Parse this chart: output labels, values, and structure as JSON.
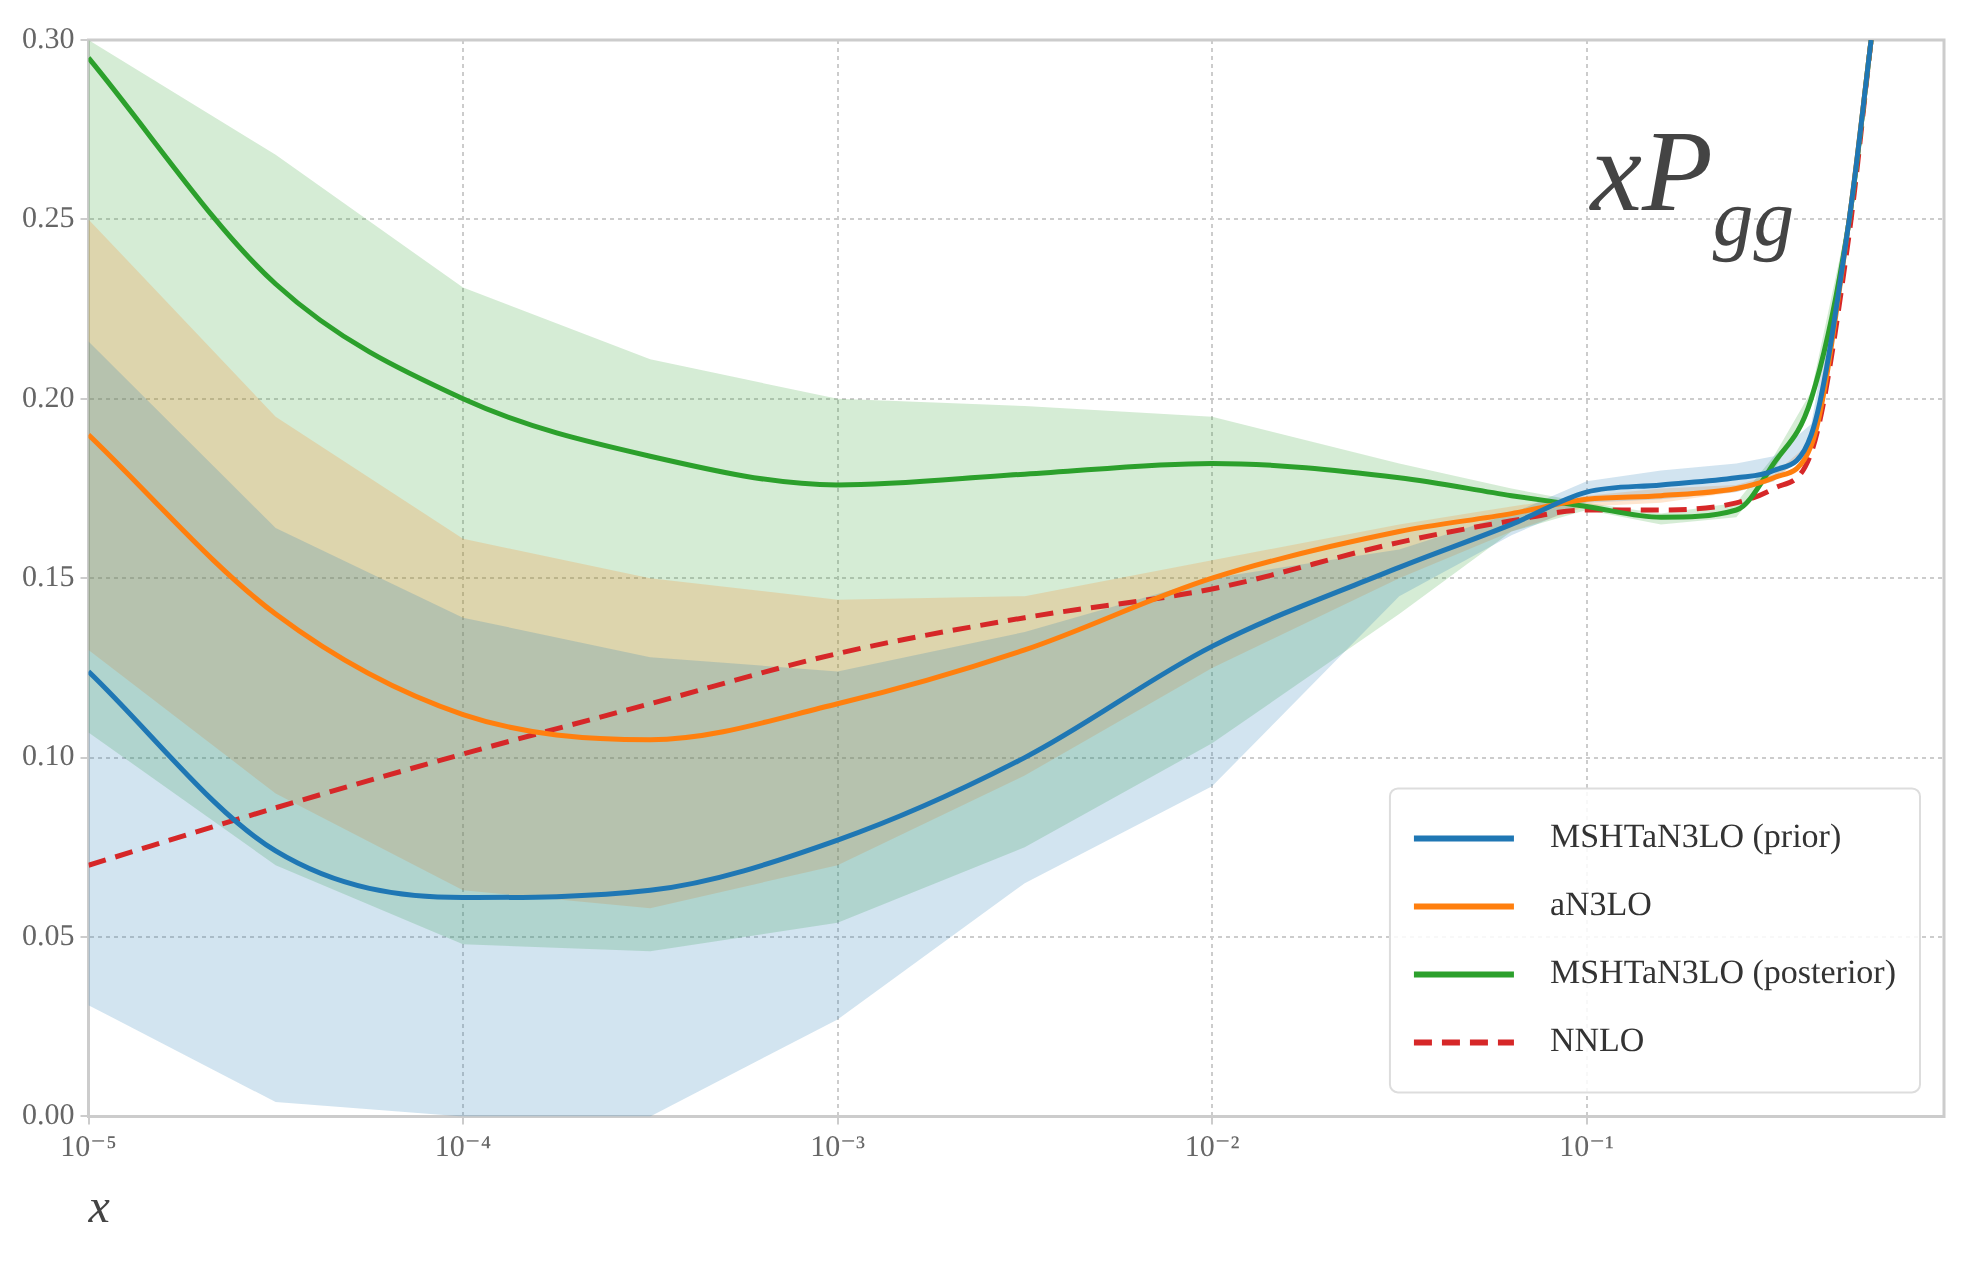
{
  "chart_data": {
    "type": "line",
    "title": "xP$_{gg}$",
    "xlabel": "x",
    "x": [
      1e-05,
      3.16e-05,
      0.0001,
      0.000316,
      0.001,
      0.00316,
      0.01,
      0.0316,
      0.063,
      0.1,
      0.158,
      0.251,
      0.316,
      0.398,
      0.501,
      0.575
    ],
    "series": [
      {
        "name": "MSHTaN3LO (prior)",
        "color": "#1f77b4",
        "values": [
          0.124,
          0.074,
          0.061,
          0.063,
          0.077,
          0.1,
          0.131,
          0.153,
          0.165,
          0.174,
          0.176,
          0.178,
          0.18,
          0.19,
          0.249,
          0.3
        ],
        "lower": [
          0.031,
          0.004,
          0,
          0,
          0.027,
          0.065,
          0.092,
          0.145,
          0.162,
          0.171,
          0.172,
          0.174,
          0.177,
          0.187,
          0.246,
          0.3
        ],
        "upper": [
          0.216,
          0.164,
          0.139,
          0.128,
          0.124,
          0.135,
          0.15,
          0.158,
          0.168,
          0.177,
          0.18,
          0.182,
          0.184,
          0.193,
          0.252,
          0.3
        ]
      },
      {
        "name": "aN3LO",
        "color": "#ff7f0e",
        "values": [
          0.19,
          0.14,
          0.112,
          0.105,
          0.115,
          0.13,
          0.15,
          0.163,
          0.168,
          0.172,
          0.173,
          0.175,
          0.178,
          0.187,
          0.249,
          0.3
        ],
        "lower": [
          0.13,
          0.09,
          0.063,
          0.058,
          0.07,
          0.095,
          0.125,
          0.15,
          0.163,
          0.17,
          0.171,
          0.174,
          0.177,
          0.186,
          0.248,
          0.3
        ],
        "upper": [
          0.25,
          0.195,
          0.161,
          0.15,
          0.144,
          0.145,
          0.155,
          0.165,
          0.17,
          0.173,
          0.175,
          0.176,
          0.179,
          0.188,
          0.25,
          0.3
        ]
      },
      {
        "name": "MSHTaN3LO (posterior)",
        "color": "#2ca02c",
        "values": [
          0.295,
          0.232,
          0.2,
          0.184,
          0.176,
          0.179,
          0.182,
          0.178,
          0.173,
          0.17,
          0.167,
          0.169,
          0.182,
          0.2,
          0.249,
          0.3
        ],
        "lower": [
          0.107,
          0.07,
          0.048,
          0.046,
          0.054,
          0.075,
          0.104,
          0.14,
          0.163,
          0.169,
          0.165,
          0.167,
          0.18,
          0.198,
          0.247,
          0.3
        ],
        "upper": [
          0.3,
          0.268,
          0.231,
          0.211,
          0.2,
          0.198,
          0.195,
          0.182,
          0.175,
          0.171,
          0.168,
          0.171,
          0.184,
          0.202,
          0.251,
          0.3
        ]
      },
      {
        "name": "NNLO",
        "color": "#d62728",
        "line_style": "dashed",
        "values": [
          0.07,
          0.086,
          0.101,
          0.115,
          0.129,
          0.139,
          0.147,
          0.16,
          0.166,
          0.169,
          0.169,
          0.171,
          0.175,
          0.185,
          0.245,
          0.3
        ]
      }
    ],
    "log": "x",
    "xlim": [
      1e-05,
      0.9
    ],
    "xticks": [
      {
        "value": 1e-05,
        "label": "10⁻⁵"
      },
      {
        "value": 0.0001,
        "label": "10⁻⁴"
      },
      {
        "value": 0.001,
        "label": "10⁻³"
      },
      {
        "value": 0.01,
        "label": "10⁻²"
      },
      {
        "value": 0.1,
        "label": "10⁻¹"
      }
    ],
    "ylim": [
      0,
      0.3
    ],
    "yticks": [
      {
        "value": 0,
        "label": "0.00"
      },
      {
        "value": 0.05,
        "label": "0.05"
      },
      {
        "value": 0.1,
        "label": "0.10"
      },
      {
        "value": 0.15,
        "label": "0.15"
      },
      {
        "value": 0.2,
        "label": "0.20"
      },
      {
        "value": 0.25,
        "label": "0.25"
      },
      {
        "value": 0.3,
        "label": "0.30"
      }
    ],
    "grid": true,
    "legend": "bottom right",
    "marker": "none"
  }
}
